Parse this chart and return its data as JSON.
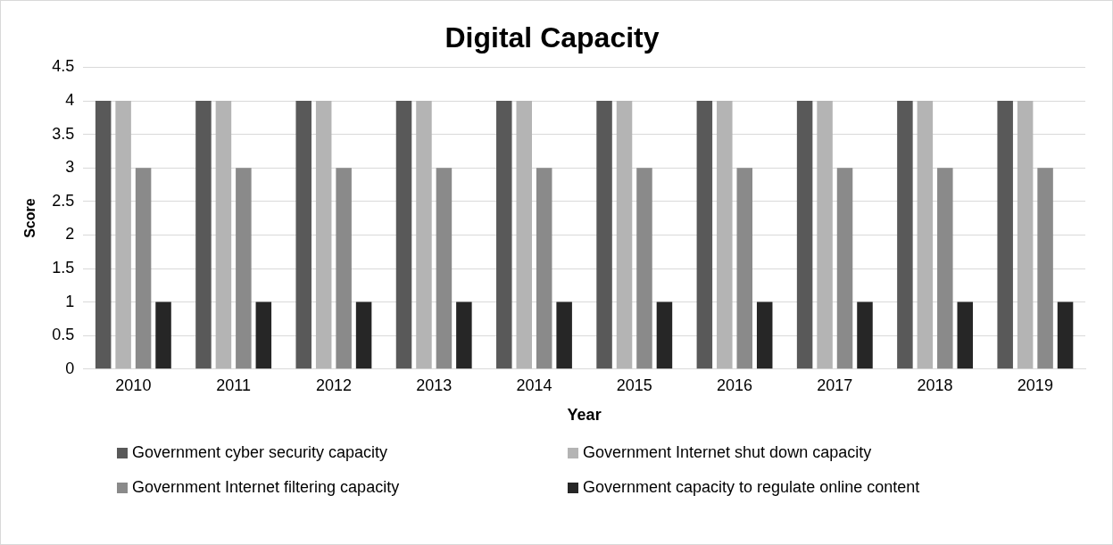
{
  "chart_data": {
    "type": "bar",
    "title": "Digital Capacity",
    "xlabel": "Year",
    "ylabel": "Score",
    "categories": [
      "2010",
      "2011",
      "2012",
      "2013",
      "2014",
      "2015",
      "2016",
      "2017",
      "2018",
      "2019"
    ],
    "series": [
      {
        "name": "Government cyber security capacity",
        "color": "#595959",
        "values": [
          4,
          4,
          4,
          4,
          4,
          4,
          4,
          4,
          4,
          4
        ]
      },
      {
        "name": "Government Internet shut down capacity",
        "color": "#b4b4b4",
        "values": [
          4,
          4,
          4,
          4,
          4,
          4,
          4,
          4,
          4,
          4
        ]
      },
      {
        "name": "Government Internet filtering capacity",
        "color": "#8a8a8a",
        "values": [
          3,
          3,
          3,
          3,
          3,
          3,
          3,
          3,
          3,
          3
        ]
      },
      {
        "name": "Government capacity to regulate online content",
        "color": "#262626",
        "values": [
          1,
          1,
          1,
          1,
          1,
          1,
          1,
          1,
          1,
          1
        ]
      }
    ],
    "ylim": [
      0,
      4.5
    ],
    "yticks": [
      0,
      0.5,
      1,
      1.5,
      2,
      2.5,
      3,
      3.5,
      4,
      4.5
    ],
    "grid": "y",
    "legend": "bottom"
  }
}
